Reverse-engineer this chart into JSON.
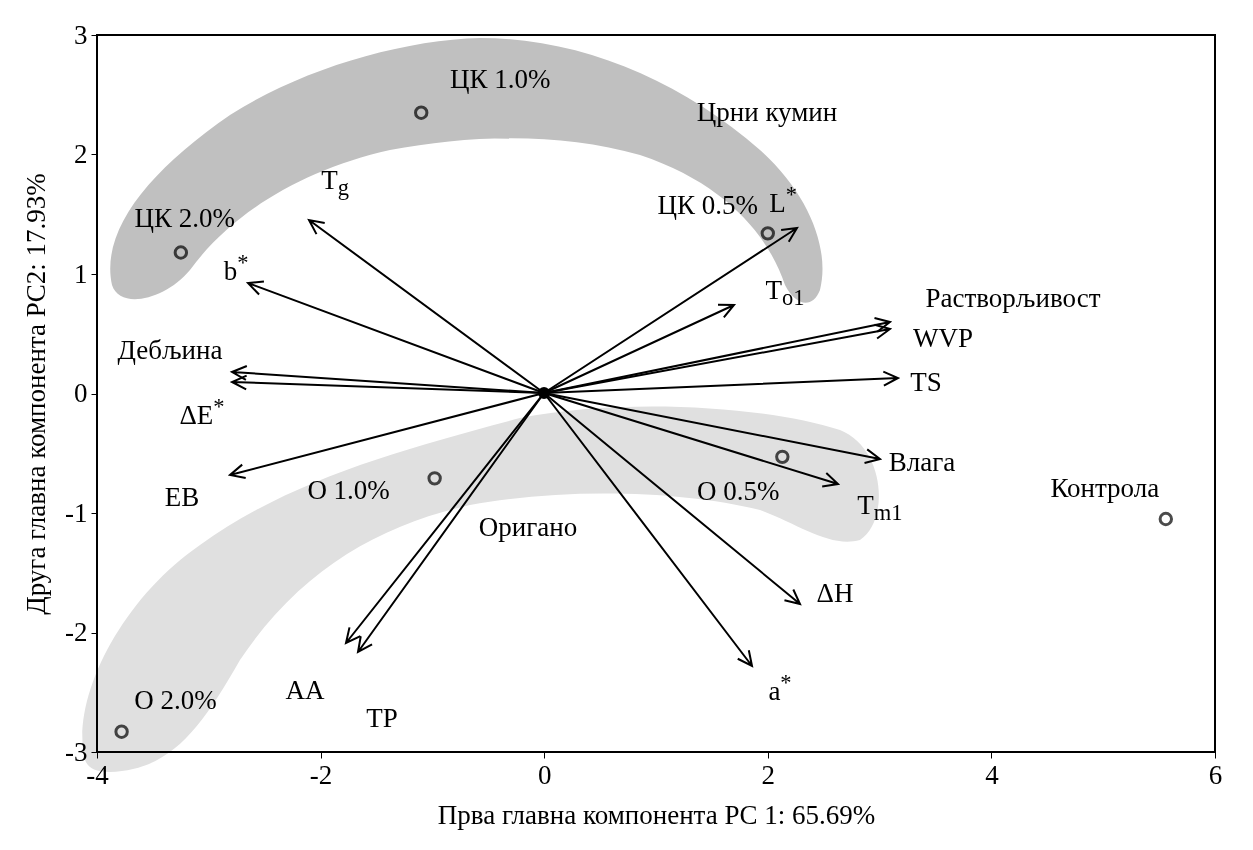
{
  "chart_data": {
    "type": "scatter",
    "xlabel": "Прва главна компонента PC 1: 65.69%",
    "ylabel": "Друга главна компонента PC2: 17.93%",
    "xlim": [
      -4,
      6
    ],
    "ylim": [
      -3,
      3
    ],
    "xticks": [
      -4,
      -2,
      0,
      2,
      4,
      6
    ],
    "yticks": [
      -3,
      -2,
      -1,
      0,
      1,
      2,
      3
    ],
    "series": [
      {
        "name": "ЦК 1.0%",
        "color": "#000000",
        "marker": "circle",
        "x": [
          -1.1
        ],
        "values": [
          2.35
        ]
      },
      {
        "name": "ЦК 2.0%",
        "color": "#000000",
        "marker": "circle",
        "x": [
          -3.25
        ],
        "values": [
          1.18
        ]
      },
      {
        "name": "ЦК 0.5%",
        "color": "#000000",
        "marker": "circle",
        "x": [
          2.0
        ],
        "values": [
          1.34
        ]
      },
      {
        "name": "О 1.0%",
        "color": "#000000",
        "marker": "circle",
        "x": [
          -0.98
        ],
        "values": [
          -0.71
        ]
      },
      {
        "name": "О 0.5%",
        "color": "#000000",
        "marker": "circle",
        "x": [
          2.13
        ],
        "values": [
          -0.53
        ]
      },
      {
        "name": "О 2.0%",
        "color": "#000000",
        "marker": "circle",
        "x": [
          -3.78
        ],
        "values": [
          -2.83
        ]
      },
      {
        "name": "Контрола",
        "color": "#000000",
        "marker": "circle",
        "x": [
          5.56
        ],
        "values": [
          -1.05
        ]
      }
    ],
    "annotations": [
      "Црни кумин",
      "Оригано",
      "T$_{g}$",
      "b$^{*}$",
      "L$^{*}$",
      "T$_{o1}$",
      "Растворљивост",
      "WVP",
      "TS",
      "Дебљина",
      "ΔE$^{*}$",
      "EB",
      "Влага",
      "T$_{m1}$",
      "ΔH",
      "a$^{*}$",
      "AA",
      "TP"
    ]
  }
}
